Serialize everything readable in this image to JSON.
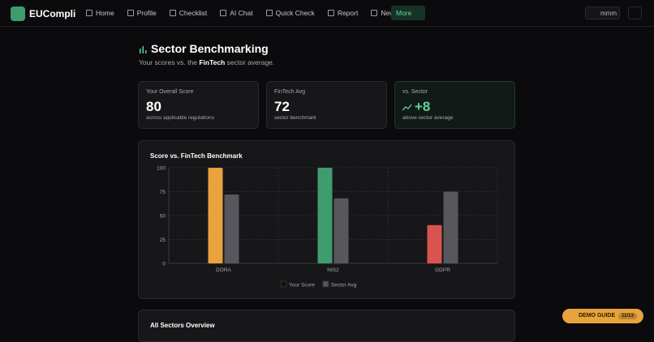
{
  "nav": {
    "brand": "EUCompli",
    "items": [
      "Home",
      "Profile",
      "Checklist",
      "AI Chat",
      "Quick Check",
      "Report",
      "News"
    ],
    "more": "More",
    "user": "mmm"
  },
  "header": {
    "title": "Sector Benchmarking",
    "subtitle_pre": "Your scores vs. the ",
    "subtitle_bold": "FinTech",
    "subtitle_post": " sector average."
  },
  "cards": [
    {
      "label": "Your Overall Score",
      "value": "80",
      "note": "across applicable regulations"
    },
    {
      "label": "FinTech Avg",
      "value": "72",
      "note": "sector benchmark"
    },
    {
      "label": "vs. Sector",
      "value": "+8",
      "note": "above sector average"
    }
  ],
  "chart": {
    "type": "bar",
    "title": "Score vs. FinTech Benchmark",
    "categories": [
      "DORA",
      "NIS2",
      "GDPR"
    ],
    "series": [
      {
        "name": "Your Score",
        "color": "#111113",
        "bar_colors": [
          "#e8a33d",
          "#3f9c6f",
          "#d9534f"
        ],
        "values": [
          100,
          100,
          40
        ]
      },
      {
        "name": "Sector Avg",
        "color": "#57575d",
        "values": [
          72,
          68,
          75
        ]
      }
    ],
    "ylim": [
      0,
      100
    ],
    "yticks": [
      0,
      25,
      50,
      75,
      100
    ],
    "grid": true
  },
  "section2": {
    "title": "All Sectors Overview"
  },
  "demo": {
    "label": "DEMO GUIDE",
    "step": "11/13"
  }
}
